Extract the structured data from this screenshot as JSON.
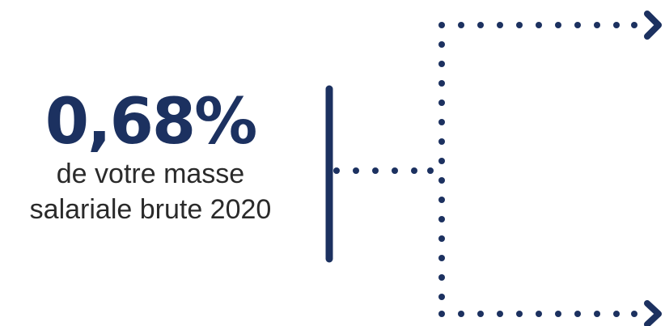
{
  "stat": {
    "value": "0,68%",
    "caption_line1": "de votre masse",
    "caption_line2": "salariale brute 2020"
  },
  "colors": {
    "navy": "#1c3160",
    "text": "#2a2a2a"
  },
  "icons": {
    "branch_arrows": [
      "chevron-right-icon",
      "chevron-right-icon"
    ]
  }
}
